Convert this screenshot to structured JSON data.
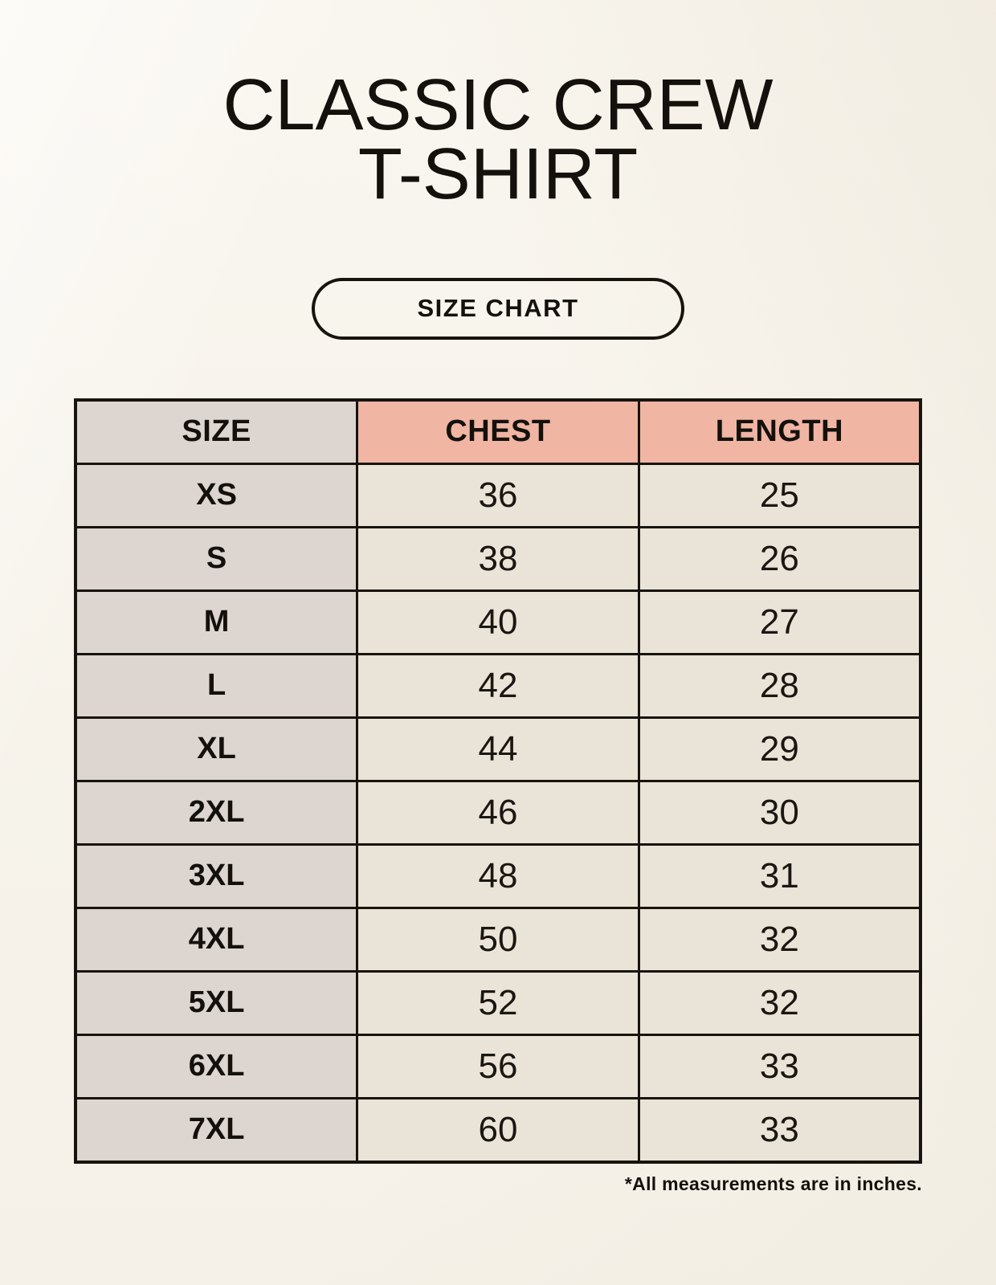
{
  "page": {
    "title_line1": "CLASSIC CREW",
    "title_line2": "T-SHIRT",
    "badge_label": "SIZE CHART",
    "footnote": "*All measurements are in inches."
  },
  "chart_data": {
    "type": "table",
    "title": "CLASSIC CREW T-SHIRT",
    "subtitle": "SIZE CHART",
    "columns": [
      "SIZE",
      "CHEST",
      "LENGTH"
    ],
    "rows": [
      [
        "XS",
        36,
        25
      ],
      [
        "S",
        38,
        26
      ],
      [
        "M",
        40,
        27
      ],
      [
        "L",
        42,
        28
      ],
      [
        "XL",
        44,
        29
      ],
      [
        "2XL",
        46,
        30
      ],
      [
        "3XL",
        48,
        31
      ],
      [
        "4XL",
        50,
        32
      ],
      [
        "5XL",
        52,
        32
      ],
      [
        "6XL",
        56,
        33
      ],
      [
        "7XL",
        60,
        33
      ]
    ],
    "note": "*All measurements are in inches.",
    "units": "inches"
  },
  "colors": {
    "page_background": "#f7f3eb",
    "header_accent": "#f0b5a3",
    "size_column": "#ddd6d0",
    "value_cell": "#eae3d7",
    "border": "#17130d",
    "text": "#14110c"
  }
}
